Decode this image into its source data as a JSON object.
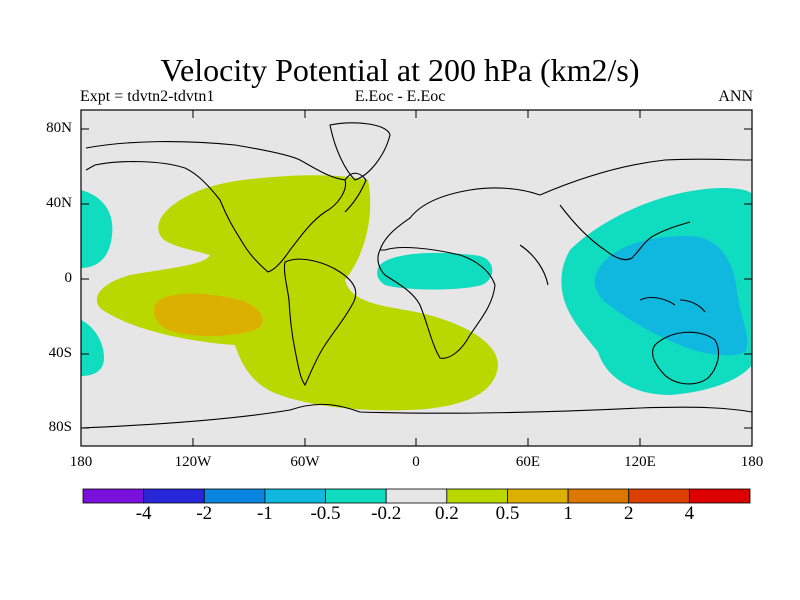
{
  "title": "Velocity Potential at 200 hPa (km2/s)",
  "left_label": "Expt = tdvtn2-tdvtn1",
  "center_label": "E.Eoc - E.Eoc",
  "right_label": "ANN",
  "lat_ticks": [
    "80N",
    "40N",
    "0",
    "40S",
    "80S"
  ],
  "lon_ticks": [
    "180",
    "120W",
    "60W",
    "0",
    "60E",
    "120E",
    "180"
  ],
  "colorbar": {
    "colors": [
      "#7a10dc",
      "#2727d8",
      "#0a86e0",
      "#10b8e0",
      "#10dcc0",
      "#e6e6e6",
      "#b8d800",
      "#dcb000",
      "#dc7800",
      "#dc4000",
      "#dc0000"
    ],
    "labels": [
      "-4",
      "-2",
      "-1",
      "-0.5",
      "-0.2",
      "0.2",
      "0.5",
      "1",
      "2",
      "4"
    ]
  },
  "chart_data": {
    "type": "map",
    "variable": "Velocity Potential at 200 hPa",
    "units": "km2/s",
    "experiment": "tdvtn2-tdvtn1",
    "season": "ANN",
    "lon_range": [
      -180,
      180
    ],
    "lat_range": [
      -90,
      90
    ],
    "contour_levels": [
      -4,
      -2,
      -1,
      -0.5,
      -0.2,
      0.2,
      0.5,
      1,
      2,
      4
    ],
    "features": [
      {
        "name": "East Pacific / South America positive anomaly",
        "range": "0.2 to 0.5"
      },
      {
        "name": "Central Pacific maximum",
        "range": "0.5 to 1"
      },
      {
        "name": "Western Pacific / Maritime Continent negative anomaly",
        "range": "-0.5 to -0.2"
      },
      {
        "name": "Western Pacific minimum",
        "range": "-1 to -0.5"
      },
      {
        "name": "Tropical Africa negative anomaly",
        "range": "-0.5 to -0.2"
      },
      {
        "name": "Dateline negative anomalies",
        "range": "-0.5 to -0.2"
      }
    ]
  }
}
